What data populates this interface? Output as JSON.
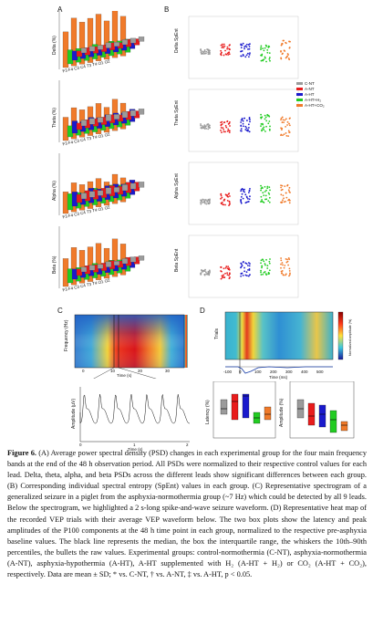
{
  "panels": {
    "a": "A",
    "b": "B",
    "c": "C",
    "d": "D"
  },
  "panel_a": {
    "ylabels": [
      "Delta (%)",
      "Theta (%)",
      "Alpha (%)",
      "Beta (%)"
    ],
    "leads": "F3  F4  C3  C4  T3  T4  O1  O2",
    "colors": {
      "cnt": "#9b9b9b",
      "ant": "#e81c1c",
      "aht": "#1a1acc",
      "h2": "#22cc22",
      "co2": "#f07a2a"
    }
  },
  "panel_b": {
    "ylabels": [
      "Delta SpEnt",
      "Theta SpEnt",
      "Alpha SpEnt",
      "Beta SpEnt"
    ],
    "yticks": [
      "0.9",
      "0.8",
      "0.7"
    ],
    "legend": [
      "C-NT",
      "A-NT",
      "A-HT",
      "A-HT+H₂",
      "A-HT+CO₂"
    ]
  },
  "panel_c": {
    "ylabel": "Frequency (Hz)",
    "xlabel": "Time (s)",
    "xticks": [
      "0",
      "10",
      "20",
      "30"
    ],
    "trace_ylabel": "Amplitude (µV)",
    "trace_xlabel": "Time (s)",
    "trace_xticks": [
      "0",
      "1",
      "2"
    ]
  },
  "panel_d": {
    "heat_ylabel": "Trials",
    "heat_xlabel": "Time (ms)",
    "heat_xticks": [
      "-100",
      "0",
      "100",
      "200",
      "300",
      "400",
      "500"
    ],
    "colorbar_label": "Normalized amplitude (%)",
    "latency_ylabel": "Latency (%)",
    "amplitude_ylabel": "Amplitude (%)"
  },
  "caption": {
    "label": "Figure 6.",
    "text": "(A) Average power spectral density (PSD) changes in each experimental group for the four main frequency bands at the end of the 48 h observation period. All PSDs were normalized to their respective control values for each lead. Delta, theta, alpha, and beta PSDs across the different leads show significant differences between each group. (B) Corresponding individual spectral entropy (SpEnt) values in each group. (C) Representative spectrogram of a generalized seizure in a piglet from the asphyxia-normothermia group (~7 Hz) which could be detected by all 9 leads. Below the spectrogram, we highlighted a 2 s-long spike-and-wave seizure waveform. (D) Representative heat map of the recorded VEP trials with their average VEP waveform below. The two box plots show the latency and peak amplitudes of the P100 components at the 48 h time point in each group, normalized to the respective pre-asphyxia baseline values. The black line represents the median, the box the interquartile range, the whiskers the 10th–90th percentiles, the bullets the raw values. Experimental groups: control-normothermia (C-NT), asphyxia-normothermia (A-NT), asphyxia-hypothermia (A-HT), A-HT supplemented with H₂ (A-HT + H₂) or CO₂ (A-HT + CO₂), respectively. Data are mean ± SD; * vs. C-NT, † vs. A-NT, ‡ vs. A-HT, p < 0.05."
  }
}
